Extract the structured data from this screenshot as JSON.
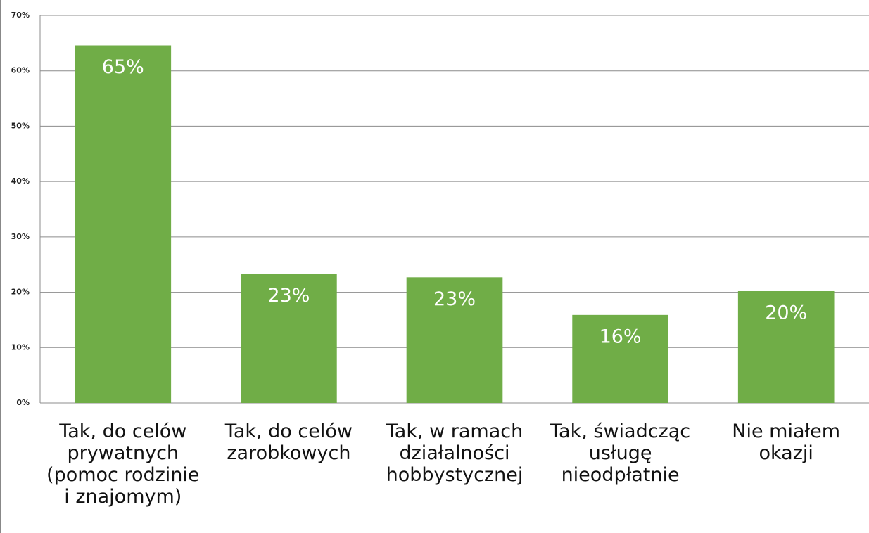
{
  "chart_data": {
    "type": "bar",
    "categories": [
      "Tak, do celów prywatnych (pomoc rodzinie i znajomym)",
      "Tak, do celów zarobkowych",
      "Tak, w ramach działalności hobbystycznej",
      "Tak, świadcząc usługę nieodpłatnie",
      "Nie miałem okazji"
    ],
    "values": [
      64.6,
      23.3,
      22.7,
      15.9,
      20.2
    ],
    "value_labels": [
      "65%",
      "23%",
      "23%",
      "16%",
      "20%"
    ],
    "color": "#70ad47",
    "ylim": [
      0,
      70
    ],
    "yticks": [
      {
        "value": 0,
        "label": "0%"
      },
      {
        "value": 10,
        "label": "10%"
      },
      {
        "value": 20,
        "label": "20%"
      },
      {
        "value": 30,
        "label": "30%"
      },
      {
        "value": 40,
        "label": "40%"
      },
      {
        "value": 50,
        "label": "50%"
      },
      {
        "value": 60,
        "label": "60%"
      },
      {
        "value": 70,
        "label": "70%"
      }
    ],
    "grid": true
  }
}
